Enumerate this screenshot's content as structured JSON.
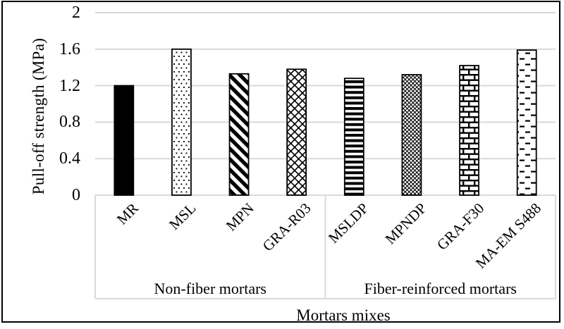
{
  "figure": {
    "background": "#ffffff",
    "border_color": "#000000"
  },
  "colors": {
    "bar_fill": "#000000",
    "bar_stroke": "#000000",
    "gridline": "#d9d9d9",
    "axis_box": "#d9d9d9",
    "text": "#000000"
  },
  "chart_data": {
    "type": "bar",
    "title": "",
    "xlabel": "Mortars mixes",
    "ylabel": "Pull-off strength (MPa)",
    "ylim": [
      0,
      2
    ],
    "yticks": [
      0,
      0.4,
      0.8,
      1.2,
      1.6,
      2
    ],
    "ytick_labels": [
      "0",
      "0.4",
      "0.8",
      "1.2",
      "1.6",
      "2"
    ],
    "grid": true,
    "legend": "none",
    "categories": [
      "MR",
      "MSL",
      "MPN",
      "GRA-R03",
      "MSLDP",
      "MPNDP",
      "GRA-F30",
      "MA-EM S488"
    ],
    "values": [
      1.2,
      1.6,
      1.33,
      1.38,
      1.28,
      1.32,
      1.42,
      1.59
    ],
    "patterns": [
      "solid-black",
      "dots",
      "diagonal-stripes",
      "diamond-lattice",
      "horizontal-stripes",
      "small-diamond-grid",
      "brick",
      "horizontal-dashes"
    ],
    "groups": [
      {
        "label": "Non-fiber mortars",
        "span": [
          0,
          4
        ]
      },
      {
        "label": "Fiber-reinforced mortars",
        "span": [
          4,
          8
        ]
      }
    ]
  }
}
